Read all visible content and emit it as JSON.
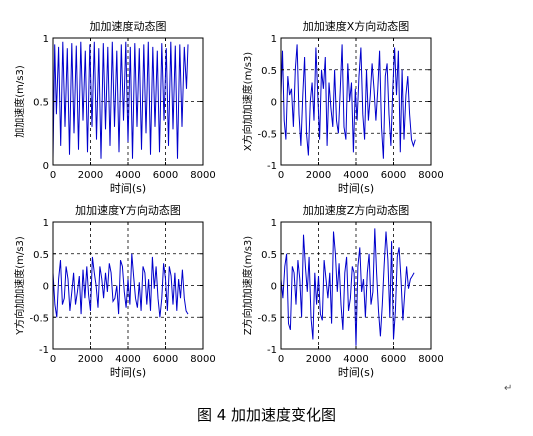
{
  "caption": "图 4  加加速度变化图",
  "paragraph_mark": "↵",
  "chart_data": [
    {
      "type": "line",
      "title": "加加速度动态图",
      "xlabel": "时间(s)",
      "ylabel": "加加速度(m/s3)",
      "xlim": [
        0,
        8000
      ],
      "ylim": [
        0,
        1
      ],
      "xticks": [
        0,
        2000,
        4000,
        6000,
        8000
      ],
      "yticks": [
        0,
        0.5,
        1
      ],
      "ytick_labels": [
        "0",
        "0.5",
        "1"
      ],
      "grid": true,
      "series": [
        {
          "color": "#0000cc",
          "x": [
            0,
            90,
            180,
            300,
            410,
            520,
            640,
            760,
            880,
            1000,
            1120,
            1240,
            1360,
            1480,
            1600,
            1720,
            1840,
            1960,
            2080,
            2200,
            2320,
            2440,
            2560,
            2680,
            2800,
            2920,
            3040,
            3160,
            3280,
            3400,
            3520,
            3640,
            3760,
            3880,
            4000,
            4120,
            4240,
            4360,
            4480,
            4600,
            4720,
            4840,
            4960,
            5080,
            5200,
            5320,
            5440,
            5560,
            5680,
            5800,
            5920,
            6040,
            6160,
            6280,
            6400,
            6520,
            6640,
            6760,
            6880,
            7000,
            7120,
            7200
          ],
          "y": [
            0.05,
            0.95,
            0.4,
            0.93,
            0.15,
            0.97,
            0.3,
            0.92,
            0.08,
            0.96,
            0.25,
            0.94,
            0.12,
            0.97,
            0.35,
            0.9,
            0.1,
            0.95,
            0.3,
            0.97,
            0.2,
            0.92,
            0.05,
            0.96,
            0.28,
            0.93,
            0.15,
            0.97,
            0.3,
            0.9,
            0.1,
            0.95,
            0.35,
            0.97,
            0.18,
            0.93,
            0.05,
            0.96,
            0.3,
            0.92,
            0.12,
            0.95,
            0.25,
            0.97,
            0.08,
            0.93,
            0.3,
            0.9,
            0.1,
            0.96,
            0.35,
            0.92,
            0.15,
            0.97,
            0.28,
            0.94,
            0.05,
            0.95,
            0.3,
            0.93,
            0.6,
            0.95
          ]
        }
      ]
    },
    {
      "type": "line",
      "title": "加加速度X方向动态图",
      "xlabel": "时间(s)",
      "ylabel": "X方向加加速度(m/s3)",
      "xlim": [
        0,
        8000
      ],
      "ylim": [
        -1,
        1
      ],
      "xticks": [
        0,
        2000,
        4000,
        6000,
        8000
      ],
      "yticks": [
        -1,
        -0.5,
        0,
        0.5,
        1
      ],
      "ytick_labels": [
        "-1",
        "-0.5",
        "0",
        "0.5",
        "1"
      ],
      "grid": true,
      "series": [
        {
          "color": "#0000cc",
          "x": [
            0,
            80,
            170,
            260,
            360,
            460,
            560,
            660,
            760,
            860,
            960,
            1060,
            1160,
            1260,
            1360,
            1460,
            1560,
            1660,
            1760,
            1860,
            1960,
            2060,
            2160,
            2260,
            2360,
            2460,
            2560,
            2660,
            2760,
            2860,
            2960,
            3060,
            3160,
            3260,
            3360,
            3460,
            3560,
            3660,
            3760,
            3860,
            3960,
            4060,
            4160,
            4260,
            4360,
            4460,
            4560,
            4660,
            4760,
            4860,
            4960,
            5060,
            5160,
            5260,
            5360,
            5460,
            5560,
            5660,
            5760,
            5860,
            5960,
            6060,
            6160,
            6260,
            6360,
            6460,
            6560,
            6660,
            6760,
            6860,
            6960,
            7060,
            7160
          ],
          "y": [
            0.1,
            0.8,
            -0.3,
            -0.6,
            0.4,
            0.1,
            0.2,
            -0.4,
            0.5,
            0.9,
            -0.2,
            -0.7,
            0.1,
            0.7,
            -0.5,
            -0.85,
            0.0,
            0.3,
            -0.3,
            0.85,
            0.1,
            -0.6,
            0.5,
            0.2,
            0.7,
            -0.7,
            0.3,
            -0.1,
            -0.4,
            0.5,
            -0.3,
            -0.5,
            0.2,
            0.9,
            -0.4,
            -0.6,
            0.6,
            0.0,
            0.3,
            -0.8,
            0.2,
            -0.3,
            0.4,
            0.85,
            -0.2,
            -0.6,
            0.5,
            -0.3,
            0.1,
            0.6,
            0.2,
            -0.3,
            0.2,
            0.8,
            -0.4,
            -0.9,
            0.4,
            0.6,
            -0.2,
            -0.7,
            0.2,
            0.85,
            0.1,
            0.8,
            -0.8,
            0.5,
            -0.6,
            0.1,
            0.4,
            -0.2,
            -0.6,
            -0.7,
            -0.6
          ]
        }
      ]
    },
    {
      "type": "line",
      "title": "加加速度Y方向动态图",
      "xlabel": "时间(s)",
      "ylabel": "Y方向加加速度(m/s3)",
      "xlim": [
        0,
        8000
      ],
      "ylim": [
        -1,
        1
      ],
      "xticks": [
        0,
        2000,
        4000,
        6000,
        8000
      ],
      "yticks": [
        -1,
        -0.5,
        0,
        0.5,
        1
      ],
      "ytick_labels": [
        "-1",
        "-0.5",
        "0",
        "0.5",
        "1"
      ],
      "grid": true,
      "series": [
        {
          "color": "#0000cc",
          "x": [
            0,
            100,
            200,
            300,
            400,
            500,
            600,
            700,
            800,
            900,
            1000,
            1100,
            1200,
            1300,
            1400,
            1500,
            1600,
            1700,
            1800,
            1900,
            2000,
            2100,
            2200,
            2300,
            2400,
            2500,
            2600,
            2700,
            2800,
            2900,
            3000,
            3100,
            3200,
            3300,
            3400,
            3500,
            3600,
            3700,
            3800,
            3900,
            4000,
            4100,
            4200,
            4300,
            4400,
            4500,
            4600,
            4700,
            4800,
            4900,
            5000,
            5100,
            5200,
            5300,
            5400,
            5500,
            5600,
            5700,
            5800,
            5900,
            6000,
            6100,
            6200,
            6300,
            6400,
            6500,
            6600,
            6700,
            6800,
            6900,
            7000,
            7100,
            7200
          ],
          "y": [
            0.2,
            -0.3,
            -0.5,
            0.1,
            0.4,
            -0.3,
            -0.2,
            0.3,
            0.1,
            -0.4,
            -0.1,
            0.2,
            -0.3,
            -0.1,
            0.15,
            -0.45,
            0.25,
            -0.2,
            0.3,
            -0.15,
            -0.4,
            0.45,
            0.2,
            0.0,
            -0.35,
            0.3,
            0.1,
            -0.2,
            0.2,
            -0.1,
            0.35,
            0.2,
            -0.25,
            -0.2,
            0.0,
            -0.45,
            0.4,
            0.3,
            -0.1,
            -0.35,
            0.1,
            -0.3,
            0.5,
            0.15,
            -0.2,
            -0.35,
            0.05,
            -0.4,
            0.3,
            0.2,
            -0.3,
            0.1,
            -0.4,
            0.45,
            -0.05,
            0.3,
            -0.2,
            -0.5,
            -0.2,
            0.35,
            0.1,
            -0.4,
            0.3,
            0.15,
            -0.3,
            0.2,
            -0.4,
            0.1,
            -0.2,
            0.25,
            -0.2,
            -0.4,
            -0.45
          ]
        }
      ]
    },
    {
      "type": "line",
      "title": "加加速度Z方向动态图",
      "xlabel": "时间(s)",
      "ylabel": "Z方向加加速度(m/s3)",
      "xlim": [
        0,
        8000
      ],
      "ylim": [
        -1,
        1
      ],
      "xticks": [
        0,
        2000,
        4000,
        6000,
        8000
      ],
      "yticks": [
        -1,
        -0.5,
        0,
        0.5,
        1
      ],
      "ytick_labels": [
        "-1",
        "-0.5",
        "0",
        "0.5",
        "1"
      ],
      "grid": true,
      "series": [
        {
          "color": "#0000cc",
          "x": [
            0,
            100,
            200,
            300,
            400,
            500,
            600,
            700,
            800,
            900,
            1000,
            1100,
            1200,
            1300,
            1400,
            1500,
            1600,
            1700,
            1800,
            1900,
            2000,
            2100,
            2200,
            2300,
            2400,
            2500,
            2600,
            2700,
            2800,
            2900,
            3000,
            3100,
            3200,
            3300,
            3400,
            3500,
            3600,
            3700,
            3800,
            3900,
            4000,
            4100,
            4200,
            4300,
            4400,
            4500,
            4600,
            4700,
            4800,
            4900,
            5000,
            5100,
            5200,
            5300,
            5400,
            5500,
            5600,
            5700,
            5800,
            5900,
            6000,
            6100,
            6200,
            6300,
            6400,
            6500,
            6600,
            6700,
            6800,
            6900,
            7000,
            7100
          ],
          "y": [
            0.1,
            -0.2,
            0.3,
            0.5,
            -0.6,
            -0.7,
            0.3,
            0.2,
            -0.3,
            0.4,
            0.1,
            -0.5,
            0.8,
            0.3,
            -0.1,
            0.45,
            -0.5,
            -0.85,
            0.2,
            -0.3,
            0.15,
            -0.45,
            -0.55,
            0.4,
            0.1,
            -0.2,
            0.2,
            -0.6,
            0.85,
            0.5,
            -0.1,
            0.35,
            -0.3,
            -0.7,
            0.2,
            0.45,
            -0.4,
            -0.2,
            0.3,
            0.2,
            -0.95,
            0.3,
            0.6,
            -0.1,
            0.1,
            -0.5,
            0.2,
            0.5,
            -0.3,
            -0.1,
            0.9,
            0.2,
            -0.4,
            -0.8,
            -0.3,
            0.3,
            0.85,
            0.4,
            -0.5,
            0.7,
            -0.85,
            -0.4,
            0.45,
            0.6,
            0.1,
            -0.55,
            -0.1,
            0.3,
            -0.05,
            0.1,
            0.15,
            0.2
          ]
        }
      ]
    }
  ]
}
